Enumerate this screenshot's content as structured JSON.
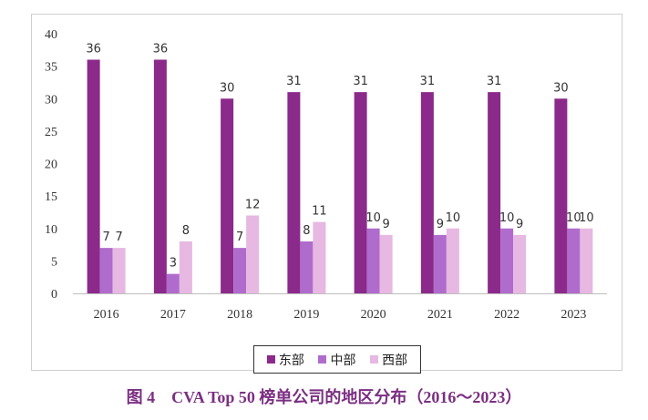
{
  "chart_data": {
    "type": "bar",
    "title": "图 4　CVA Top 50 榜单公司的地区分布（2016～2023）",
    "categories": [
      "2016",
      "2017",
      "2018",
      "2019",
      "2020",
      "2021",
      "2022",
      "2023"
    ],
    "series": [
      {
        "name": "东部",
        "color": "#8b2a8a",
        "values": [
          36,
          36,
          30,
          31,
          31,
          31,
          31,
          30
        ]
      },
      {
        "name": "中部",
        "color": "#b06ccc",
        "values": [
          7,
          3,
          7,
          8,
          10,
          9,
          10,
          10
        ]
      },
      {
        "name": "西部",
        "color": "#e6b8e2",
        "values": [
          7,
          8,
          12,
          11,
          9,
          10,
          9,
          10
        ]
      }
    ],
    "yticks": [
      "0",
      "5",
      "10",
      "15",
      "20",
      "25",
      "30",
      "35",
      "40"
    ],
    "ylim": [
      0,
      40
    ],
    "grid": false,
    "legend_position": "bottom",
    "data_labels": true
  }
}
